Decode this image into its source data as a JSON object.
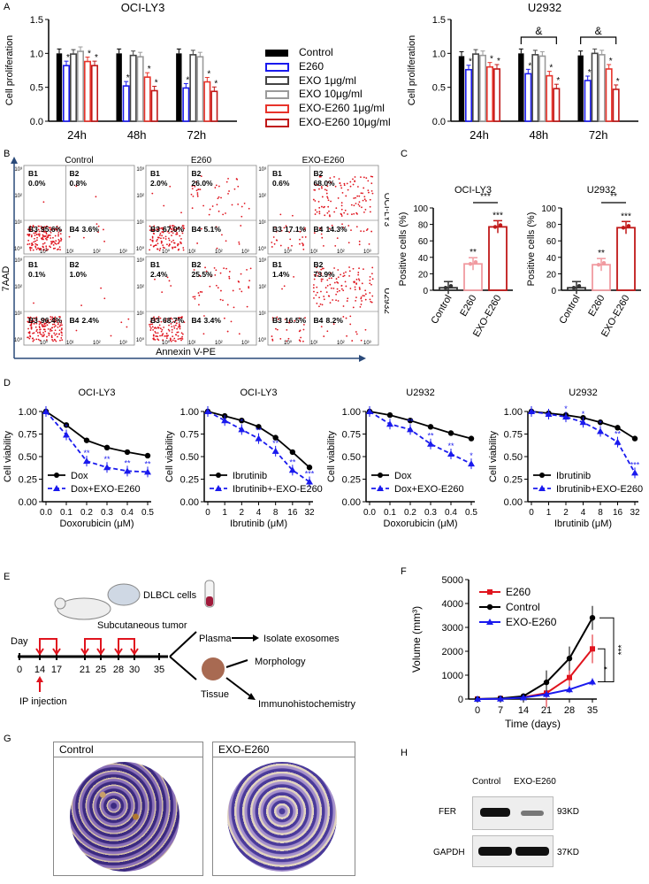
{
  "panel_labels": {
    "A": "A",
    "B": "B",
    "C": "C",
    "D": "D",
    "E": "E",
    "F": "F",
    "G": "G",
    "H": "H"
  },
  "colors": {
    "control": "#000000",
    "e260": "#1a1aee",
    "exo1": "#444444",
    "exo10": "#9a9a9a",
    "exoe1": "#e8332a",
    "exoe10": "#c01818",
    "pink": "#f19aa0",
    "flow": "#e0141e"
  },
  "chart_data": [
    {
      "id": "A1",
      "type": "bar",
      "title": "OCI-LY3",
      "ylabel": "Cell proliferation",
      "categories": [
        "24h",
        "48h",
        "72h"
      ],
      "ylim": [
        0,
        1.5
      ],
      "yticks": [
        "0.0",
        "0.5",
        "1.0",
        "1.5"
      ],
      "series": [
        {
          "name": "Control",
          "values": [
            1.0,
            1.0,
            1.0
          ]
        },
        {
          "name": "E260",
          "values": [
            0.82,
            0.52,
            0.49
          ]
        },
        {
          "name": "EXO 1μg/ml",
          "values": [
            0.99,
            0.97,
            0.98
          ]
        },
        {
          "name": "EXO 10μg/ml",
          "values": [
            1.03,
            0.95,
            0.95
          ]
        },
        {
          "name": "EXO-E260 1μg/ml",
          "values": [
            0.88,
            0.65,
            0.58
          ]
        },
        {
          "name": "EXO-E260 10μg/ml",
          "values": [
            0.82,
            0.45,
            0.44
          ]
        }
      ],
      "annotations": [
        "*",
        "*",
        "*",
        "*",
        "*",
        "*",
        "*",
        "*",
        "*",
        "*",
        "*",
        "*"
      ]
    },
    {
      "id": "A2",
      "type": "bar",
      "title": "U2932",
      "ylabel": "Cell proliferation",
      "categories": [
        "24h",
        "48h",
        "72h"
      ],
      "ylim": [
        0,
        1.5
      ],
      "yticks": [
        "0.0",
        "0.5",
        "1.0",
        "1.5"
      ],
      "series": [
        {
          "name": "Control",
          "values": [
            0.96,
            1.0,
            0.97
          ]
        },
        {
          "name": "E260",
          "values": [
            0.76,
            0.7,
            0.6
          ]
        },
        {
          "name": "EXO 1μg/ml",
          "values": [
            0.99,
            0.98,
            1.0
          ]
        },
        {
          "name": "EXO 10μg/ml",
          "values": [
            0.97,
            0.96,
            0.98
          ]
        },
        {
          "name": "EXO-E260 1μg/ml",
          "values": [
            0.8,
            0.67,
            0.77
          ]
        },
        {
          "name": "EXO-E260 10μg/ml",
          "values": [
            0.77,
            0.48,
            0.47
          ]
        }
      ],
      "brackets": [
        "&",
        "&"
      ]
    },
    {
      "id": "C1",
      "type": "bar",
      "title": "OCI-LY3",
      "ylabel": "Positive cells (%)",
      "categories": [
        "Control",
        "E260",
        "EXO-E260"
      ],
      "values": [
        3,
        32,
        77
      ],
      "ylim": [
        0,
        100
      ],
      "yticks": [
        "0",
        "20",
        "40",
        "60",
        "80",
        "100"
      ],
      "annotations": [
        "",
        "**",
        "***"
      ],
      "bracket": "***"
    },
    {
      "id": "C2",
      "type": "bar",
      "title": "U2932",
      "ylabel": "Positive cells (%)",
      "categories": [
        "Control",
        "E260",
        "EXO-E260"
      ],
      "values": [
        3,
        31,
        76
      ],
      "ylim": [
        0,
        100
      ],
      "yticks": [
        "0",
        "20",
        "40",
        "60",
        "80",
        "100"
      ],
      "annotations": [
        "",
        "**",
        "***"
      ],
      "bracket": "**"
    },
    {
      "id": "D1",
      "type": "line",
      "title": "OCI-LY3",
      "xlabel": "Doxorubicin (μM)",
      "ylabel": "Cell viability",
      "x": [
        "0.0",
        "0.1",
        "0.2",
        "0.3",
        "0.4",
        "0.5"
      ],
      "ylim": [
        0,
        1
      ],
      "yticks": [
        "0.00",
        "0.25",
        "0.50",
        "0.75",
        "1.00"
      ],
      "series": [
        {
          "name": "Dox",
          "values": [
            1.0,
            0.85,
            0.68,
            0.6,
            0.55,
            0.51
          ]
        },
        {
          "name": "Dox+EXO-E260",
          "values": [
            1.0,
            0.74,
            0.45,
            0.38,
            0.34,
            0.33
          ]
        }
      ],
      "stars": [
        "*",
        "**",
        "**",
        "**",
        "**"
      ]
    },
    {
      "id": "D2",
      "type": "line",
      "title": "OCI-LY3",
      "xlabel": "Ibrutinib (μM)",
      "ylabel": "Cell viability",
      "x": [
        "0",
        "1",
        "2",
        "4",
        "8",
        "16",
        "32"
      ],
      "ylim": [
        0,
        1
      ],
      "yticks": [
        "0.00",
        "0.25",
        "0.50",
        "0.75",
        "1.00"
      ],
      "series": [
        {
          "name": "Ibrutinib",
          "values": [
            1.0,
            0.95,
            0.9,
            0.83,
            0.71,
            0.55,
            0.38
          ]
        },
        {
          "name": "Ibrutinib+-EXO-E260",
          "values": [
            1.0,
            0.9,
            0.8,
            0.7,
            0.56,
            0.35,
            0.22
          ]
        }
      ],
      "stars": [
        "*",
        "**",
        "**",
        "**",
        "***"
      ]
    },
    {
      "id": "D3",
      "type": "line",
      "title": "U2932",
      "xlabel": "Doxorubicin (μM)",
      "ylabel": "Cell viability",
      "x": [
        "0.0",
        "0.1",
        "0.2",
        "0.3",
        "0.4",
        "0.5"
      ],
      "ylim": [
        0,
        1
      ],
      "yticks": [
        "0.00",
        "0.25",
        "0.50",
        "0.75",
        "1.00"
      ],
      "series": [
        {
          "name": "Dox",
          "values": [
            1.0,
            0.96,
            0.9,
            0.83,
            0.76,
            0.7
          ]
        },
        {
          "name": "Dox+EXO-E260",
          "values": [
            1.0,
            0.86,
            0.8,
            0.64,
            0.53,
            0.42
          ]
        }
      ],
      "stars": [
        "**",
        "**",
        "**",
        "*"
      ]
    },
    {
      "id": "D4",
      "type": "line",
      "title": "U2932",
      "xlabel": "Ibrutinib (μM)",
      "ylabel": "Cell viability",
      "x": [
        "0",
        "1",
        "2",
        "4",
        "8",
        "16",
        "32"
      ],
      "ylim": [
        0,
        1
      ],
      "yticks": [
        "0.00",
        "0.25",
        "0.50",
        "0.75",
        "1.00"
      ],
      "series": [
        {
          "name": "Ibrutinib",
          "values": [
            1.0,
            0.98,
            0.96,
            0.93,
            0.88,
            0.82,
            0.7
          ]
        },
        {
          "name": "Ibrutinib+EXO-E260",
          "values": [
            1.0,
            0.97,
            0.94,
            0.88,
            0.78,
            0.66,
            0.32
          ]
        }
      ],
      "stars": [
        "*",
        "*",
        "*",
        "**",
        "***"
      ]
    },
    {
      "id": "F",
      "type": "line",
      "xlabel": "Time (days)",
      "ylabel": "Volume (mm³)",
      "x": [
        "0",
        "7",
        "14",
        "21",
        "28",
        "35"
      ],
      "ylim": [
        0,
        5000
      ],
      "yticks": [
        "0",
        "1000",
        "2000",
        "3000",
        "4000",
        "5000"
      ],
      "series": [
        {
          "name": "E260",
          "values": [
            0,
            20,
            80,
            250,
            900,
            2100
          ]
        },
        {
          "name": "Control",
          "values": [
            0,
            30,
            120,
            700,
            1700,
            3400
          ]
        },
        {
          "name": "EXO-E260",
          "values": [
            0,
            10,
            60,
            200,
            400,
            720
          ]
        }
      ],
      "stars": [
        "***",
        "*"
      ]
    }
  ],
  "legendA": [
    "Control",
    "E260",
    "EXO 1μg/ml",
    "EXO 10μg/ml",
    "EXO-E260 1μg/ml",
    "EXO-E260 10μg/ml"
  ],
  "flow": {
    "columns": [
      "Control",
      "E260",
      "EXO-E260"
    ],
    "rows": [
      "OCI-LY3",
      "U2932"
    ],
    "ylabel": "7AAD",
    "xlabel": "Annexin V-PE",
    "q": {
      "B1": "B1",
      "B2": "B2",
      "B3": "B3",
      "B4": "B4"
    },
    "values": [
      [
        [
          "0.0%",
          "0.8%",
          "95.6%",
          "3.6%"
        ],
        [
          "2.0%",
          "26.0%",
          "67.0%",
          "5.1%"
        ],
        [
          "0.6%",
          "68.0%",
          "17.1%",
          "14.3%"
        ]
      ],
      [
        [
          "0.1%",
          "1.0%",
          "96.4%",
          "2.4%"
        ],
        [
          "2.4%",
          "25.5%",
          "68.7%",
          "3.4%"
        ],
        [
          "1.4%",
          "73.9%",
          "16.5%",
          "8.2%"
        ]
      ]
    ],
    "ticks": {
      "y3": "10³",
      "y2": "10²",
      "y1": "10¹",
      "y0": "10⁰",
      "x0": "10⁰",
      "x1": "10¹",
      "x2": "10²",
      "x3": "10³"
    }
  },
  "schematic": {
    "day": "Day",
    "days": [
      "0",
      "14",
      "17",
      "21",
      "25",
      "28",
      "30",
      "35"
    ],
    "cells": "DLBCL cells",
    "tumor": "Subcutaneous tumor",
    "ip": "IP injection",
    "plasma": "Plasma",
    "tissue": "Tissue",
    "isolate": "Isolate exosomes",
    "morph": "Morphology",
    "ihc": "Immunohistochemistry"
  },
  "ihc": {
    "control": "Control",
    "exo": "EXO-E260"
  },
  "wb": {
    "col1": "Control",
    "col2": "EXO-E260",
    "fer": "FER",
    "gapdh": "GAPDH",
    "fer_kd": "93KD",
    "gapdh_kd": "37KD"
  }
}
